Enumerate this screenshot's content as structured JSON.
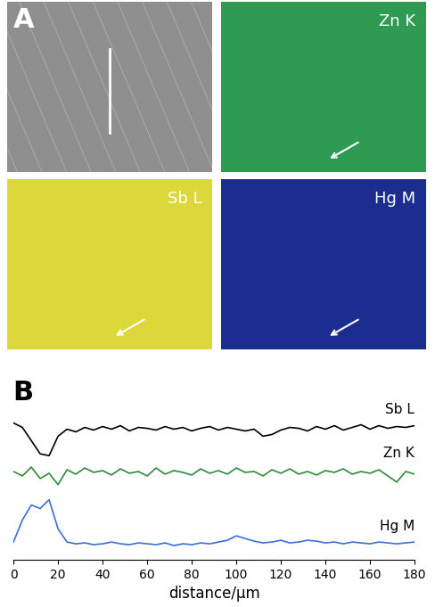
{
  "panel_labels": [
    "A",
    "B"
  ],
  "maps": [
    {
      "color": "#8f8f8f"
    },
    {
      "label": "Zn K",
      "color": "#2e9a52"
    },
    {
      "label": "Sb L",
      "color": "#dcd83a"
    },
    {
      "label": "Hg M",
      "color": "#1b2d8f"
    }
  ],
  "chart_data": {
    "type": "line",
    "x": [
      0,
      4,
      8,
      12,
      16,
      20,
      24,
      28,
      32,
      36,
      40,
      44,
      48,
      52,
      56,
      60,
      64,
      68,
      72,
      76,
      80,
      84,
      88,
      92,
      96,
      100,
      104,
      108,
      112,
      116,
      120,
      124,
      128,
      132,
      136,
      140,
      144,
      148,
      152,
      156,
      160,
      164,
      168,
      172,
      176,
      180
    ],
    "series": [
      {
        "name": "Sb L",
        "color": "#000000",
        "values": [
          155,
          150,
          135,
          120,
          118,
          140,
          148,
          145,
          150,
          147,
          151,
          148,
          152,
          146,
          150,
          149,
          147,
          151,
          148,
          150,
          146,
          149,
          151,
          147,
          150,
          148,
          146,
          148,
          140,
          142,
          147,
          150,
          149,
          146,
          151,
          148,
          152,
          147,
          150,
          153,
          148,
          152,
          149,
          151,
          150,
          152
        ]
      },
      {
        "name": "Zn K",
        "color": "#2e8b3a",
        "values": [
          100,
          95,
          105,
          92,
          98,
          85,
          102,
          97,
          104,
          99,
          101,
          96,
          103,
          98,
          100,
          95,
          104,
          97,
          101,
          99,
          96,
          103,
          98,
          101,
          97,
          104,
          99,
          100,
          95,
          102,
          98,
          103,
          97,
          100,
          96,
          101,
          99,
          103,
          97,
          100,
          98,
          102,
          95,
          88,
          100,
          97
        ]
      },
      {
        "name": "Hg M",
        "color": "#3a6fd8",
        "values": [
          20,
          45,
          62,
          58,
          68,
          35,
          20,
          18,
          19,
          17,
          18,
          20,
          18,
          17,
          19,
          18,
          17,
          19,
          16,
          18,
          17,
          19,
          18,
          20,
          22,
          27,
          24,
          21,
          19,
          20,
          22,
          19,
          20,
          22,
          21,
          19,
          20,
          18,
          20,
          19,
          18,
          20,
          19,
          18,
          19,
          20
        ]
      }
    ],
    "xlim": [
      0,
      180
    ],
    "xticks": [
      0,
      20,
      40,
      60,
      80,
      100,
      120,
      140,
      160,
      180
    ],
    "ylim": [
      0,
      210
    ],
    "xlabel": "distance/μm",
    "tick_labels": "x"
  }
}
